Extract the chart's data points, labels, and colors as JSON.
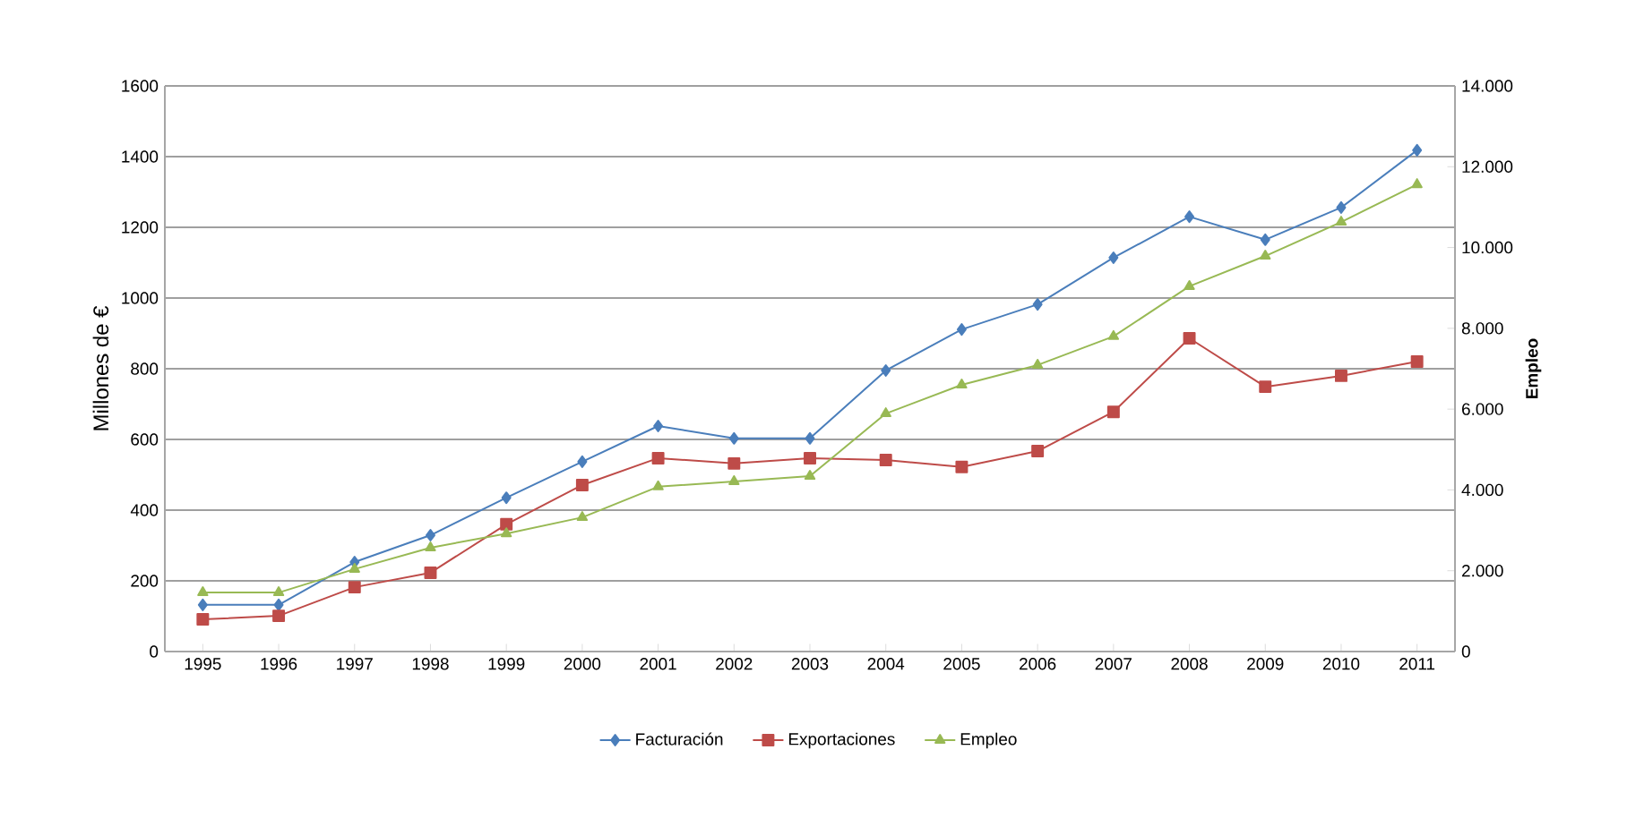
{
  "chart_data": {
    "type": "line",
    "ylabel": "Millones de €",
    "y2label": "Empleo",
    "categories": [
      "1995",
      "1996",
      "1997",
      "1998",
      "1999",
      "2000",
      "2001",
      "2002",
      "2003",
      "2004",
      "2005",
      "2006",
      "2007",
      "2008",
      "2009",
      "2010",
      "2011"
    ],
    "series": [
      {
        "name": "Facturación",
        "color": "#4a7ebb",
        "marker": "diamond",
        "values": [
          132,
          132,
          253,
          329,
          435,
          537,
          638,
          603,
          603,
          795,
          911,
          982,
          1114,
          1230,
          1165,
          1256,
          1418
        ]
      },
      {
        "name": "Exportaciones",
        "color": "#be4b48",
        "marker": "square",
        "values": [
          91,
          101,
          182,
          223,
          360,
          471,
          547,
          532,
          547,
          542,
          522,
          567,
          678,
          886,
          749,
          780,
          820
        ]
      },
      {
        "name": "Empleo",
        "color": "#98b954",
        "marker": "triangle",
        "axis": "y2",
        "values": [
          1460,
          1460,
          2040,
          2570,
          2920,
          3320,
          4080,
          4210,
          4340,
          5890,
          6600,
          7090,
          7800,
          9040,
          9790,
          10630,
          11560
        ]
      }
    ],
    "ylim": [
      0,
      1600
    ],
    "yticks": [
      0,
      200,
      400,
      600,
      800,
      1000,
      1200,
      1400,
      1600
    ],
    "y2lim": [
      0,
      14000
    ],
    "y2ticks": [
      {
        "value": 0,
        "label": "0"
      },
      {
        "value": 2000,
        "label": "2.000"
      },
      {
        "value": 4000,
        "label": "4.000"
      },
      {
        "value": 6000,
        "label": "6.000"
      },
      {
        "value": 8000,
        "label": "8.000"
      },
      {
        "value": 10000,
        "label": "10.000"
      },
      {
        "value": 12000,
        "label": "12.000"
      },
      {
        "value": 14000,
        "label": "14.000"
      }
    ],
    "grid": "y",
    "legend": "bottom",
    "line_style": "solid"
  }
}
